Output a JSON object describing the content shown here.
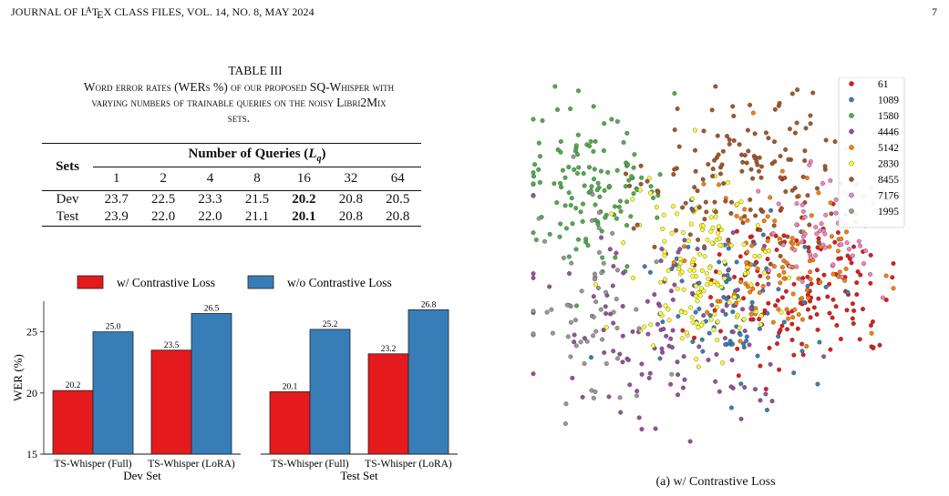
{
  "header": {
    "journal": "JOURNAL OF L",
    "latex_a": "A",
    "latex_t": "T",
    "latex_e": "E",
    "latex_x": "X CLASS FILES, VOL. 14, NO. 8, MAY 2024",
    "page_number": "7"
  },
  "table": {
    "title": "TABLE III",
    "caption_line1": "Word error rates (WERs %) of our proposed SQ-Whisper with",
    "caption_line2": "varying numbers of trainable queries on the noisy Libri2Mix",
    "caption_line3": "sets.",
    "sets_header": "Sets",
    "group_header": "Number of Queries (",
    "group_symbol": "L",
    "group_sub": "q",
    "group_close": ")",
    "columns": [
      "1",
      "2",
      "4",
      "8",
      "16",
      "32",
      "64"
    ],
    "rows": [
      {
        "label": "Dev",
        "values": [
          "23.7",
          "22.5",
          "23.3",
          "21.5",
          "20.2",
          "20.8",
          "20.5"
        ]
      },
      {
        "label": "Test",
        "values": [
          "23.9",
          "22.0",
          "22.0",
          "21.1",
          "20.1",
          "20.8",
          "20.8"
        ]
      }
    ],
    "bold_column_index": 4
  },
  "chart_data": [
    {
      "type": "bar",
      "legend": [
        "w/ Contrastive Loss",
        "w/o Contrastive Loss"
      ],
      "legend_position": "top",
      "colors": [
        "#e41a1c",
        "#377eb8"
      ],
      "ylabel": "WER (%)",
      "ylim": [
        15,
        27.5
      ],
      "yticks": [
        15,
        20,
        25
      ],
      "panels": [
        {
          "xlabel": "Dev Set",
          "categories": [
            "TS-Whisper (Full)",
            "TS-Whisper (LoRA)"
          ],
          "series": [
            {
              "name": "w/ Contrastive Loss",
              "values": [
                20.2,
                23.5
              ]
            },
            {
              "name": "w/o Contrastive Loss",
              "values": [
                25.0,
                26.5
              ]
            }
          ]
        },
        {
          "xlabel": "Test Set",
          "categories": [
            "TS-Whisper (Full)",
            "TS-Whisper (LoRA)"
          ],
          "series": [
            {
              "name": "w/ Contrastive Loss",
              "values": [
                20.1,
                23.2
              ]
            },
            {
              "name": "w/o Contrastive Loss",
              "values": [
                25.2,
                26.8
              ]
            }
          ]
        }
      ]
    },
    {
      "type": "scatter",
      "legend_position": "top-right",
      "series": [
        {
          "name": "61",
          "color": "#e41a1c"
        },
        {
          "name": "1089",
          "color": "#377eb8"
        },
        {
          "name": "1580",
          "color": "#4daf4a"
        },
        {
          "name": "4446",
          "color": "#984ea3"
        },
        {
          "name": "5142",
          "color": "#ff7f00"
        },
        {
          "name": "2830",
          "color": "#ffff33"
        },
        {
          "name": "8455",
          "color": "#a65628"
        },
        {
          "name": "7176",
          "color": "#f781bf"
        },
        {
          "name": "1995",
          "color": "#999999"
        }
      ]
    }
  ],
  "scatter_caption": "(a) w/ Contrastive Loss"
}
